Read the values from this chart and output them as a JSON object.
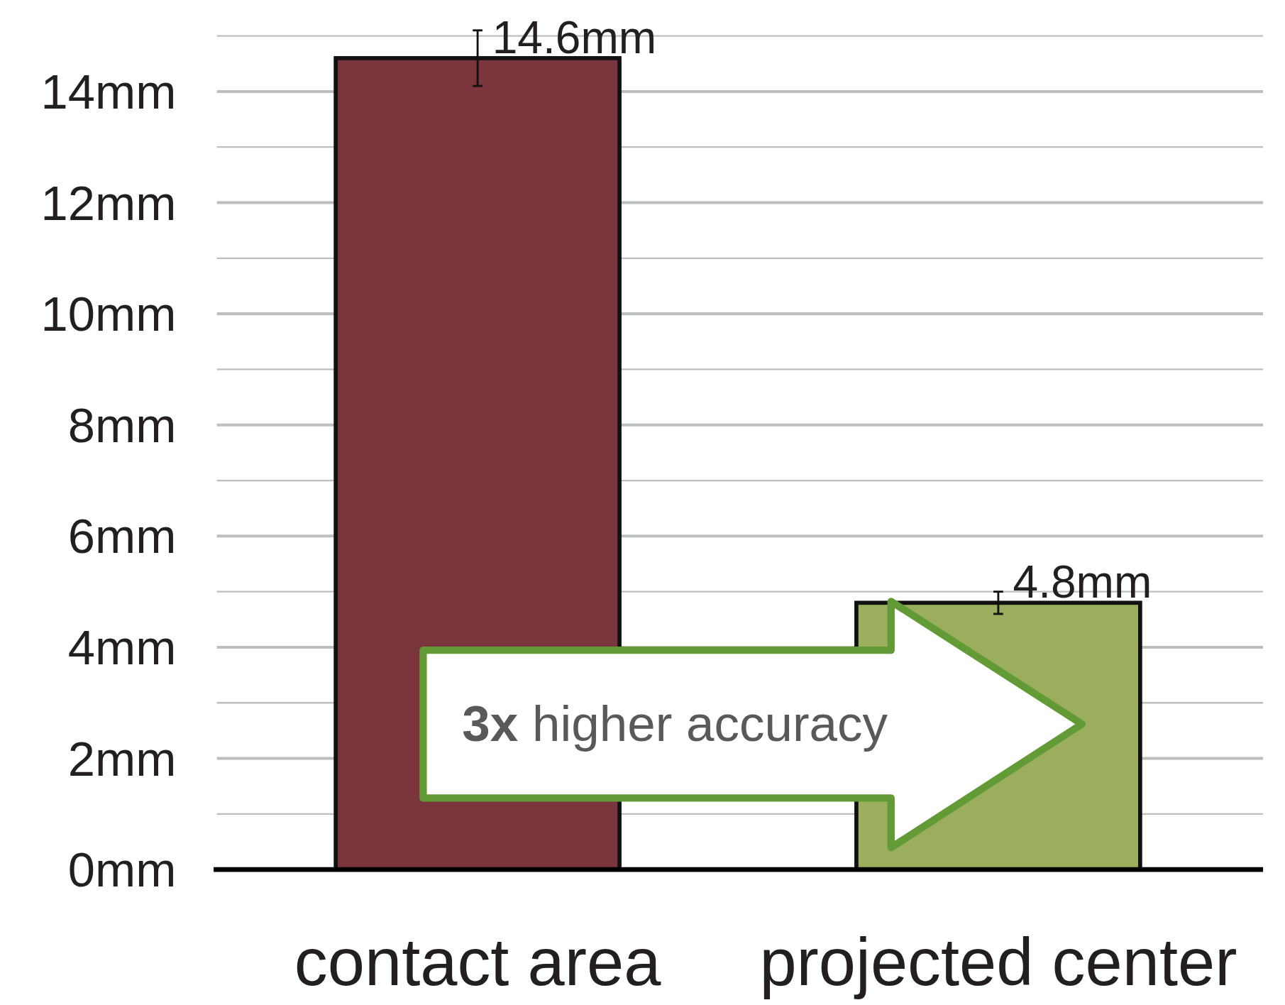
{
  "chart_data": {
    "type": "bar",
    "categories": [
      "contact area",
      "projected center"
    ],
    "values": [
      14.6,
      4.8
    ],
    "colors": [
      "#7b353d",
      "#9aae5e"
    ],
    "errors": [
      0.5,
      0.2
    ],
    "value_labels": [
      "14.6mm",
      "4.8mm"
    ],
    "ylim": [
      0,
      15
    ],
    "yticks": [
      {
        "value": 0,
        "label": "0mm"
      },
      {
        "value": 1,
        "label": null
      },
      {
        "value": 2,
        "label": "2mm"
      },
      {
        "value": 3,
        "label": null
      },
      {
        "value": 4,
        "label": "4mm"
      },
      {
        "value": 5,
        "label": null
      },
      {
        "value": 6,
        "label": "6mm"
      },
      {
        "value": 7,
        "label": null
      },
      {
        "value": 8,
        "label": "8mm"
      },
      {
        "value": 9,
        "label": null
      },
      {
        "value": 10,
        "label": "10mm"
      },
      {
        "value": 11,
        "label": null
      },
      {
        "value": 12,
        "label": "12mm"
      },
      {
        "value": 13,
        "label": null
      },
      {
        "value": 14,
        "label": "14mm"
      },
      {
        "value": 15,
        "label": null
      }
    ],
    "grid": "y",
    "annotations": [
      "3x higher accuracy"
    ]
  }
}
